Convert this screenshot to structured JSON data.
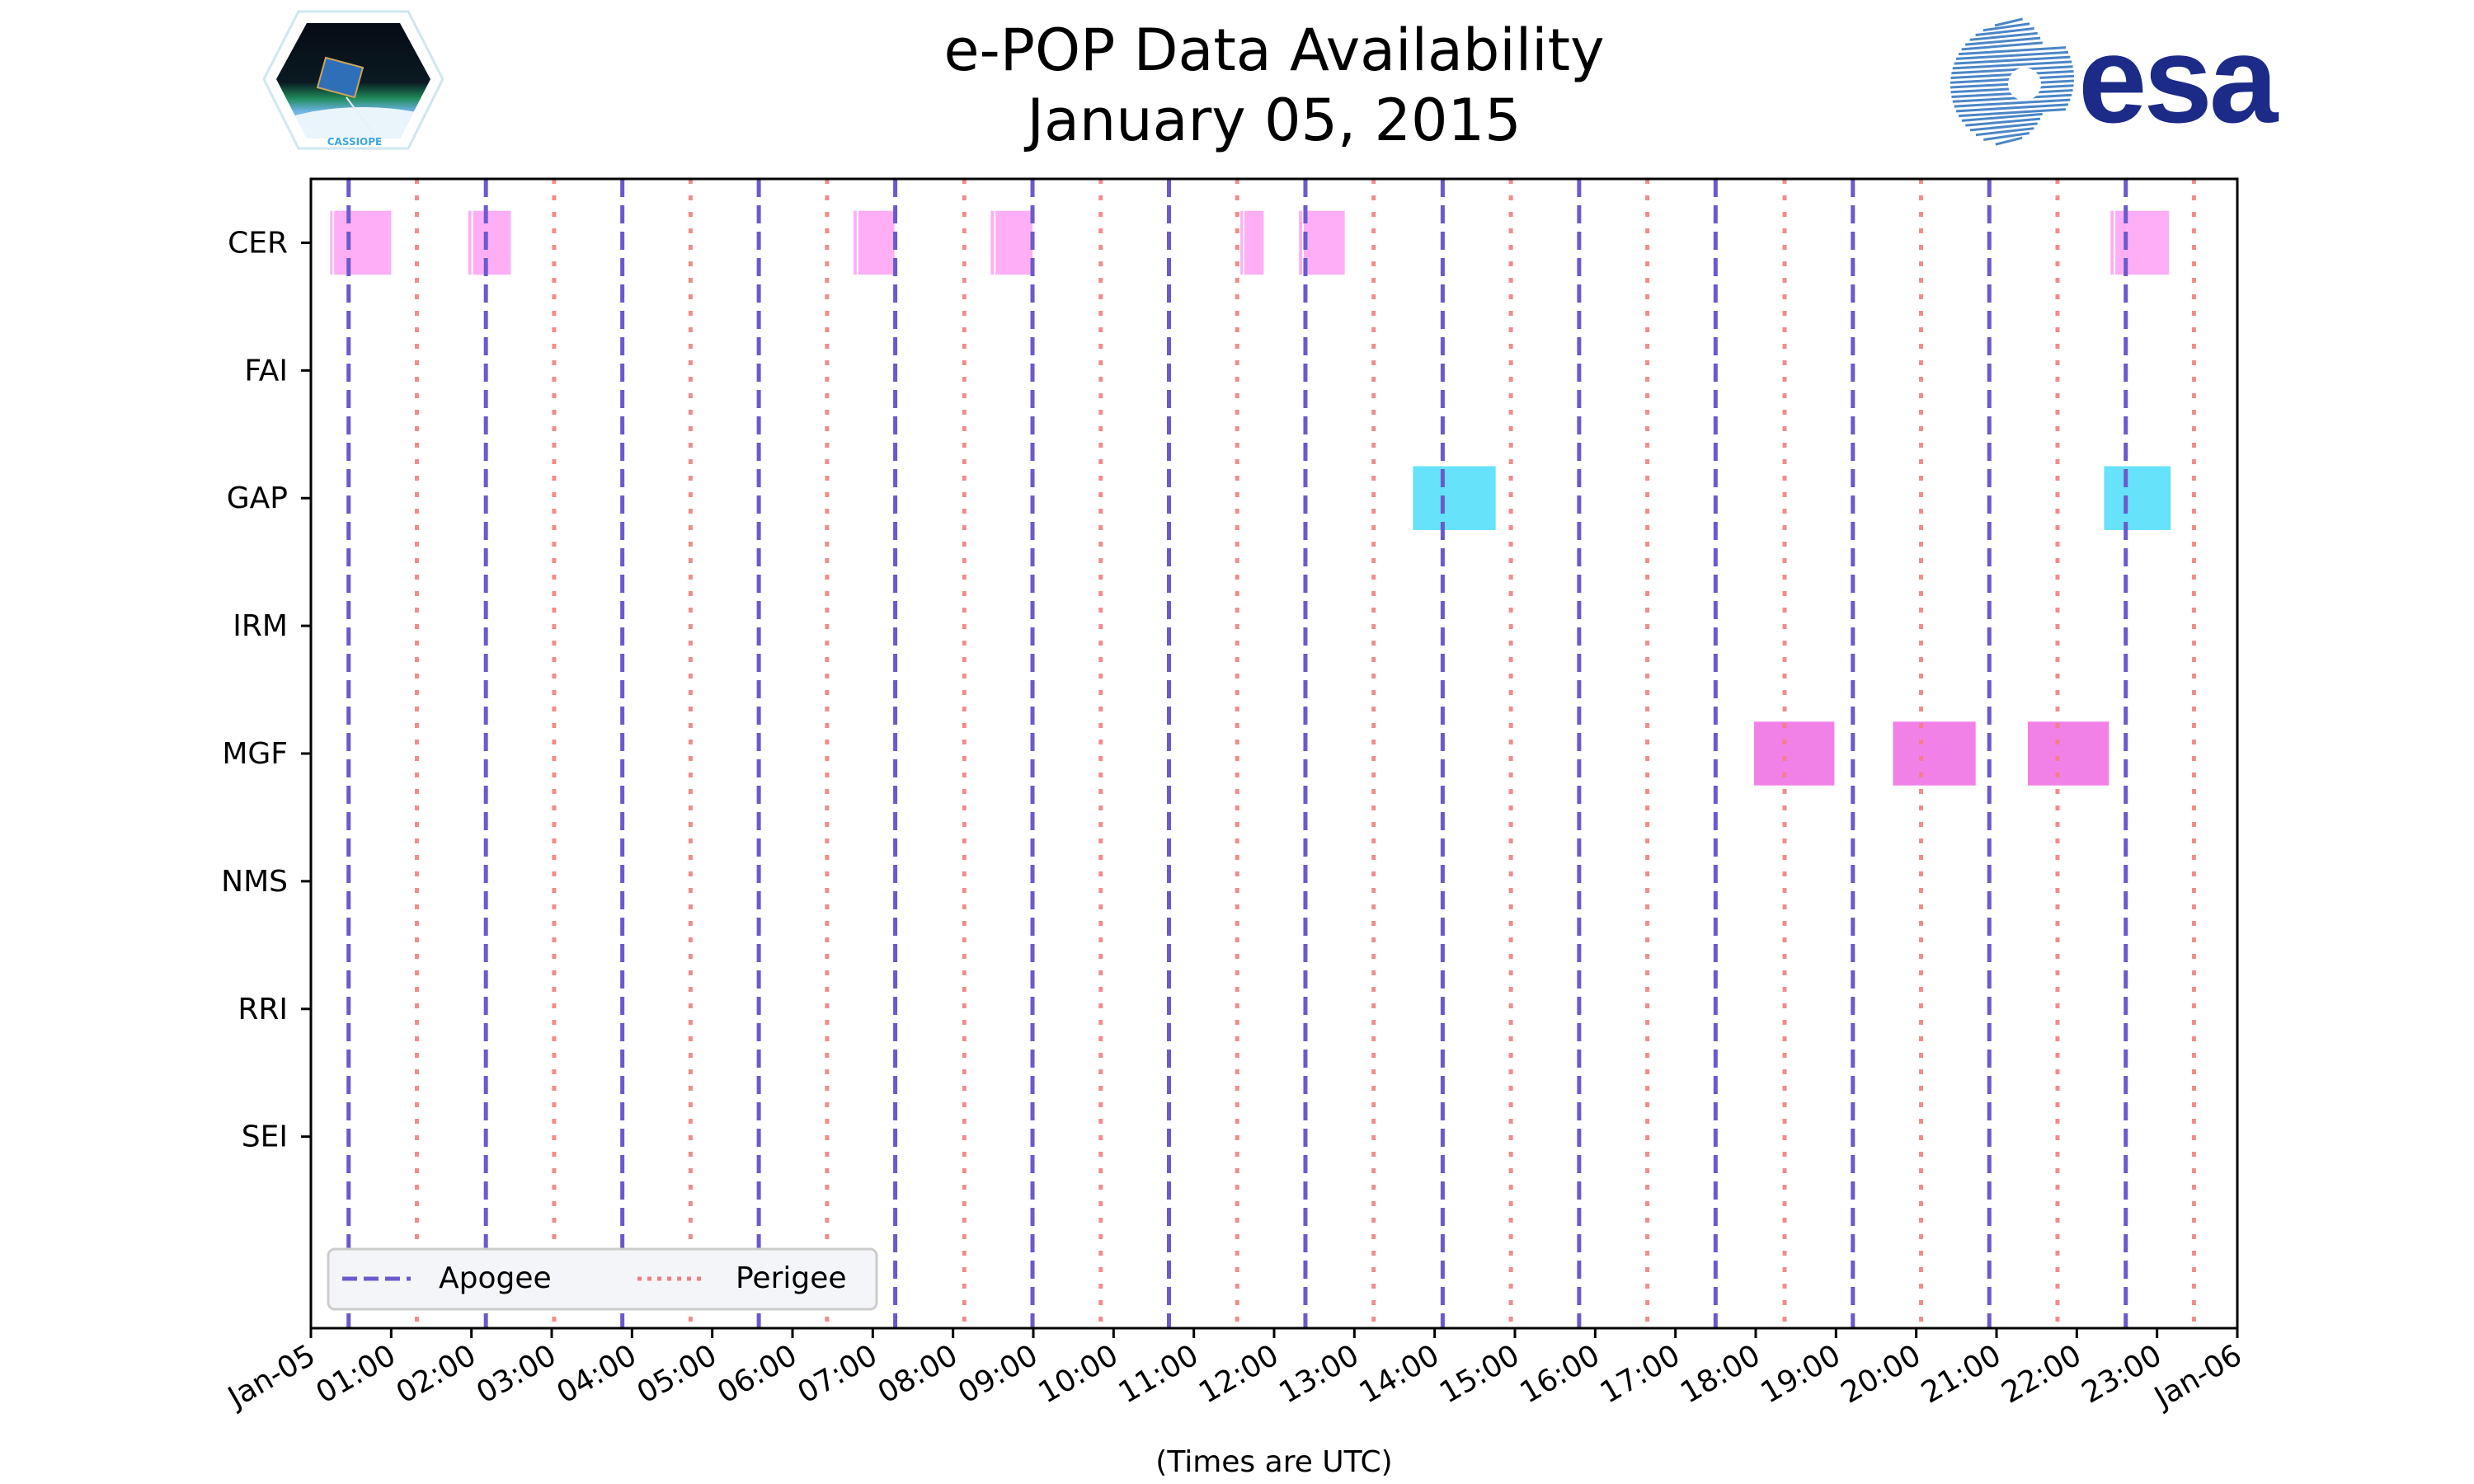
{
  "logos": {
    "left": {
      "text": "CASSIOPE",
      "icon": "cassiope-mission-badge"
    },
    "right": {
      "text": "esa",
      "icon": "esa-logo",
      "color": "#1c2a88"
    }
  },
  "chart_data": {
    "type": "timeline",
    "title_line1": "e-POP Data Availability",
    "title_line2": "January 05, 2015",
    "xlabel": "(Times are UTC)",
    "xlim_hours": [
      0,
      24
    ],
    "x_tick_labels": [
      "Jan-05",
      "01:00",
      "02:00",
      "03:00",
      "04:00",
      "05:00",
      "06:00",
      "07:00",
      "08:00",
      "09:00",
      "10:00",
      "11:00",
      "12:00",
      "13:00",
      "14:00",
      "15:00",
      "16:00",
      "17:00",
      "18:00",
      "19:00",
      "20:00",
      "21:00",
      "22:00",
      "23:00",
      "Jan-06"
    ],
    "categories": [
      "CER",
      "FAI",
      "GAP",
      "IRM",
      "MGF",
      "NMS",
      "RRI",
      "SEI"
    ],
    "ylim": [
      -0.5,
      8.5
    ],
    "series": [
      {
        "name": "CER",
        "color": "#fdaaf4",
        "intervals_hours": [
          [
            0.24,
            0.27
          ],
          [
            0.29,
            1.0
          ],
          [
            1.96,
            2.0
          ],
          [
            2.02,
            2.49
          ],
          [
            6.76,
            6.8
          ],
          [
            6.82,
            7.27
          ],
          [
            8.47,
            8.51
          ],
          [
            8.53,
            8.99
          ],
          [
            11.58,
            11.61
          ],
          [
            11.63,
            11.87
          ],
          [
            12.31,
            12.35
          ],
          [
            12.37,
            12.88
          ],
          [
            22.42,
            22.46
          ],
          [
            22.48,
            23.15
          ]
        ]
      },
      {
        "name": "FAI",
        "color": "#fdaaf4",
        "intervals_hours": []
      },
      {
        "name": "GAP",
        "color": "#5ee0fa",
        "intervals_hours": [
          [
            13.73,
            14.76
          ],
          [
            22.34,
            23.17
          ]
        ]
      },
      {
        "name": "IRM",
        "color": "#fdaaf4",
        "intervals_hours": []
      },
      {
        "name": "MGF",
        "color": "#f07ae6",
        "intervals_hours": [
          [
            17.98,
            18.98
          ],
          [
            19.71,
            20.74
          ],
          [
            21.39,
            22.4
          ]
        ]
      },
      {
        "name": "NMS",
        "color": "#fdaaf4",
        "intervals_hours": []
      },
      {
        "name": "RRI",
        "color": "#fdaaf4",
        "intervals_hours": []
      },
      {
        "name": "SEI",
        "color": "#fdaaf4",
        "intervals_hours": []
      }
    ],
    "apogee": {
      "label": "Apogee",
      "color": "#6a5acd",
      "hours": [
        0.47,
        2.18,
        3.88,
        5.58,
        7.28,
        8.99,
        10.69,
        12.39,
        14.1,
        15.8,
        17.5,
        19.21,
        20.91,
        22.61
      ]
    },
    "perigee": {
      "label": "Perigee",
      "color": "#f08080",
      "hours": [
        1.32,
        3.03,
        4.73,
        6.43,
        8.14,
        9.84,
        11.54,
        13.24,
        14.95,
        16.65,
        18.36,
        20.06,
        21.76,
        23.46
      ]
    },
    "legend_position": "lower-left",
    "grid": false
  }
}
